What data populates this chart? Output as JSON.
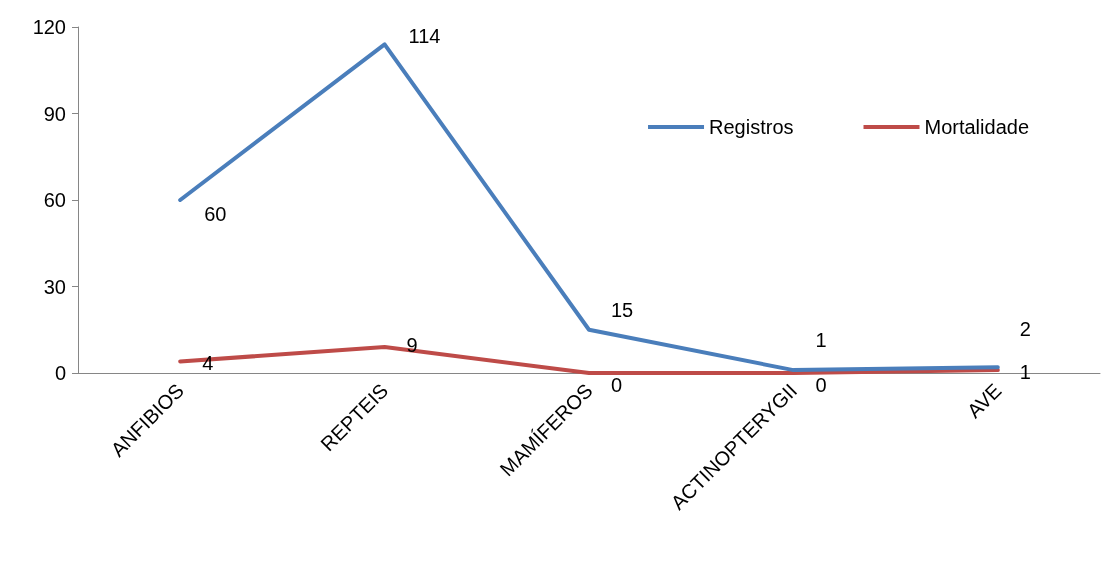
{
  "chart_data": {
    "type": "line",
    "categories": [
      "ANFIBIOS",
      "REPTEIS",
      "MAMÍFEROS",
      "ACTINOPTERYGII",
      "AVE"
    ],
    "series": [
      {
        "name": "Registros",
        "color": "#4a7ebb",
        "values": [
          60,
          114,
          15,
          1,
          2
        ]
      },
      {
        "name": "Mortalidade",
        "color": "#be4b48",
        "values": [
          4,
          9,
          0,
          0,
          1
        ]
      }
    ],
    "ylim": [
      0,
      120
    ],
    "yticks": [
      0,
      30,
      60,
      90,
      120
    ],
    "grid": false,
    "legend": "top right",
    "marker": "none",
    "line_style": "solid",
    "data_labels": true
  }
}
